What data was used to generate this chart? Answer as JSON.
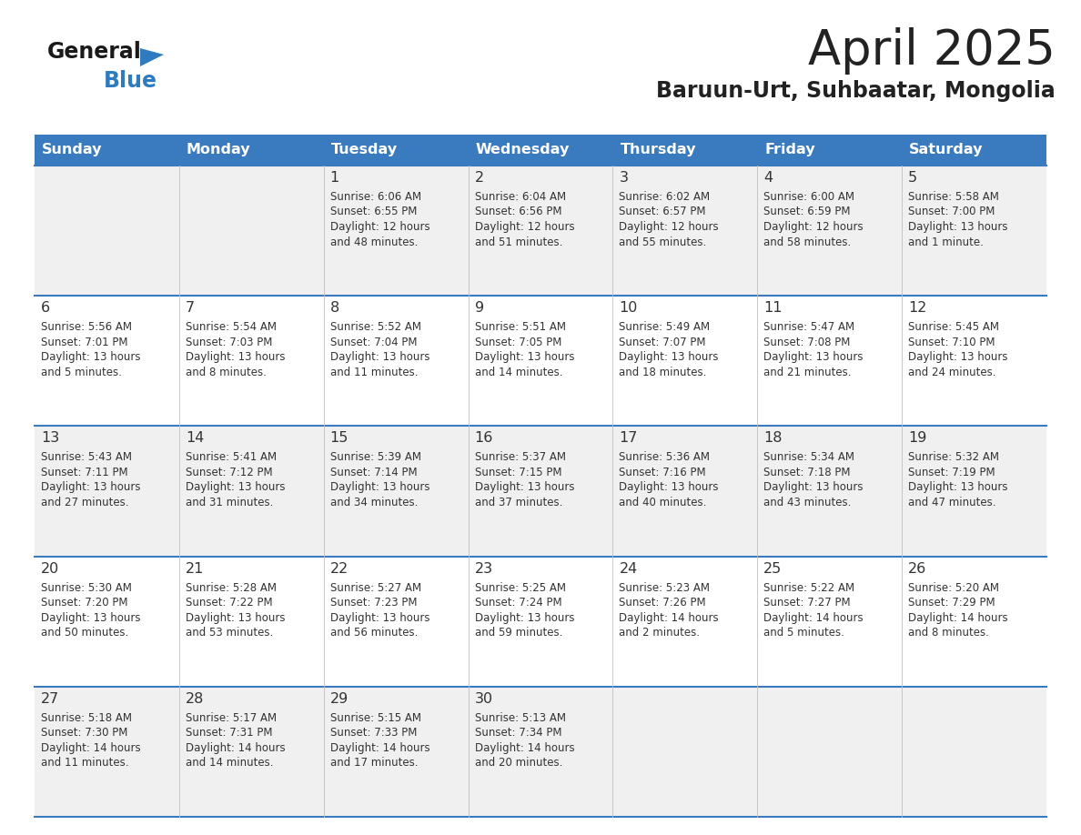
{
  "title": "April 2025",
  "subtitle": "Baruun-Urt, Suhbaatar, Mongolia",
  "days_of_week": [
    "Sunday",
    "Monday",
    "Tuesday",
    "Wednesday",
    "Thursday",
    "Friday",
    "Saturday"
  ],
  "header_bg": "#3a7bbf",
  "header_text": "#ffffff",
  "row_bg_even": "#f0f0f0",
  "row_bg_odd": "#ffffff",
  "border_color": "#3a7bbf",
  "cell_border_color": "#3a7bbf",
  "text_color": "#333333",
  "title_color": "#222222",
  "logo_general_color": "#1a1a1a",
  "logo_blue_color": "#2e7bbf",
  "weeks": [
    [
      {
        "day": null,
        "info": null
      },
      {
        "day": null,
        "info": null
      },
      {
        "day": 1,
        "info": "Sunrise: 6:06 AM\nSunset: 6:55 PM\nDaylight: 12 hours\nand 48 minutes."
      },
      {
        "day": 2,
        "info": "Sunrise: 6:04 AM\nSunset: 6:56 PM\nDaylight: 12 hours\nand 51 minutes."
      },
      {
        "day": 3,
        "info": "Sunrise: 6:02 AM\nSunset: 6:57 PM\nDaylight: 12 hours\nand 55 minutes."
      },
      {
        "day": 4,
        "info": "Sunrise: 6:00 AM\nSunset: 6:59 PM\nDaylight: 12 hours\nand 58 minutes."
      },
      {
        "day": 5,
        "info": "Sunrise: 5:58 AM\nSunset: 7:00 PM\nDaylight: 13 hours\nand 1 minute."
      }
    ],
    [
      {
        "day": 6,
        "info": "Sunrise: 5:56 AM\nSunset: 7:01 PM\nDaylight: 13 hours\nand 5 minutes."
      },
      {
        "day": 7,
        "info": "Sunrise: 5:54 AM\nSunset: 7:03 PM\nDaylight: 13 hours\nand 8 minutes."
      },
      {
        "day": 8,
        "info": "Sunrise: 5:52 AM\nSunset: 7:04 PM\nDaylight: 13 hours\nand 11 minutes."
      },
      {
        "day": 9,
        "info": "Sunrise: 5:51 AM\nSunset: 7:05 PM\nDaylight: 13 hours\nand 14 minutes."
      },
      {
        "day": 10,
        "info": "Sunrise: 5:49 AM\nSunset: 7:07 PM\nDaylight: 13 hours\nand 18 minutes."
      },
      {
        "day": 11,
        "info": "Sunrise: 5:47 AM\nSunset: 7:08 PM\nDaylight: 13 hours\nand 21 minutes."
      },
      {
        "day": 12,
        "info": "Sunrise: 5:45 AM\nSunset: 7:10 PM\nDaylight: 13 hours\nand 24 minutes."
      }
    ],
    [
      {
        "day": 13,
        "info": "Sunrise: 5:43 AM\nSunset: 7:11 PM\nDaylight: 13 hours\nand 27 minutes."
      },
      {
        "day": 14,
        "info": "Sunrise: 5:41 AM\nSunset: 7:12 PM\nDaylight: 13 hours\nand 31 minutes."
      },
      {
        "day": 15,
        "info": "Sunrise: 5:39 AM\nSunset: 7:14 PM\nDaylight: 13 hours\nand 34 minutes."
      },
      {
        "day": 16,
        "info": "Sunrise: 5:37 AM\nSunset: 7:15 PM\nDaylight: 13 hours\nand 37 minutes."
      },
      {
        "day": 17,
        "info": "Sunrise: 5:36 AM\nSunset: 7:16 PM\nDaylight: 13 hours\nand 40 minutes."
      },
      {
        "day": 18,
        "info": "Sunrise: 5:34 AM\nSunset: 7:18 PM\nDaylight: 13 hours\nand 43 minutes."
      },
      {
        "day": 19,
        "info": "Sunrise: 5:32 AM\nSunset: 7:19 PM\nDaylight: 13 hours\nand 47 minutes."
      }
    ],
    [
      {
        "day": 20,
        "info": "Sunrise: 5:30 AM\nSunset: 7:20 PM\nDaylight: 13 hours\nand 50 minutes."
      },
      {
        "day": 21,
        "info": "Sunrise: 5:28 AM\nSunset: 7:22 PM\nDaylight: 13 hours\nand 53 minutes."
      },
      {
        "day": 22,
        "info": "Sunrise: 5:27 AM\nSunset: 7:23 PM\nDaylight: 13 hours\nand 56 minutes."
      },
      {
        "day": 23,
        "info": "Sunrise: 5:25 AM\nSunset: 7:24 PM\nDaylight: 13 hours\nand 59 minutes."
      },
      {
        "day": 24,
        "info": "Sunrise: 5:23 AM\nSunset: 7:26 PM\nDaylight: 14 hours\nand 2 minutes."
      },
      {
        "day": 25,
        "info": "Sunrise: 5:22 AM\nSunset: 7:27 PM\nDaylight: 14 hours\nand 5 minutes."
      },
      {
        "day": 26,
        "info": "Sunrise: 5:20 AM\nSunset: 7:29 PM\nDaylight: 14 hours\nand 8 minutes."
      }
    ],
    [
      {
        "day": 27,
        "info": "Sunrise: 5:18 AM\nSunset: 7:30 PM\nDaylight: 14 hours\nand 11 minutes."
      },
      {
        "day": 28,
        "info": "Sunrise: 5:17 AM\nSunset: 7:31 PM\nDaylight: 14 hours\nand 14 minutes."
      },
      {
        "day": 29,
        "info": "Sunrise: 5:15 AM\nSunset: 7:33 PM\nDaylight: 14 hours\nand 17 minutes."
      },
      {
        "day": 30,
        "info": "Sunrise: 5:13 AM\nSunset: 7:34 PM\nDaylight: 14 hours\nand 20 minutes."
      },
      {
        "day": null,
        "info": null
      },
      {
        "day": null,
        "info": null
      },
      {
        "day": null,
        "info": null
      }
    ]
  ],
  "fig_width": 11.88,
  "fig_height": 9.18,
  "dpi": 100
}
